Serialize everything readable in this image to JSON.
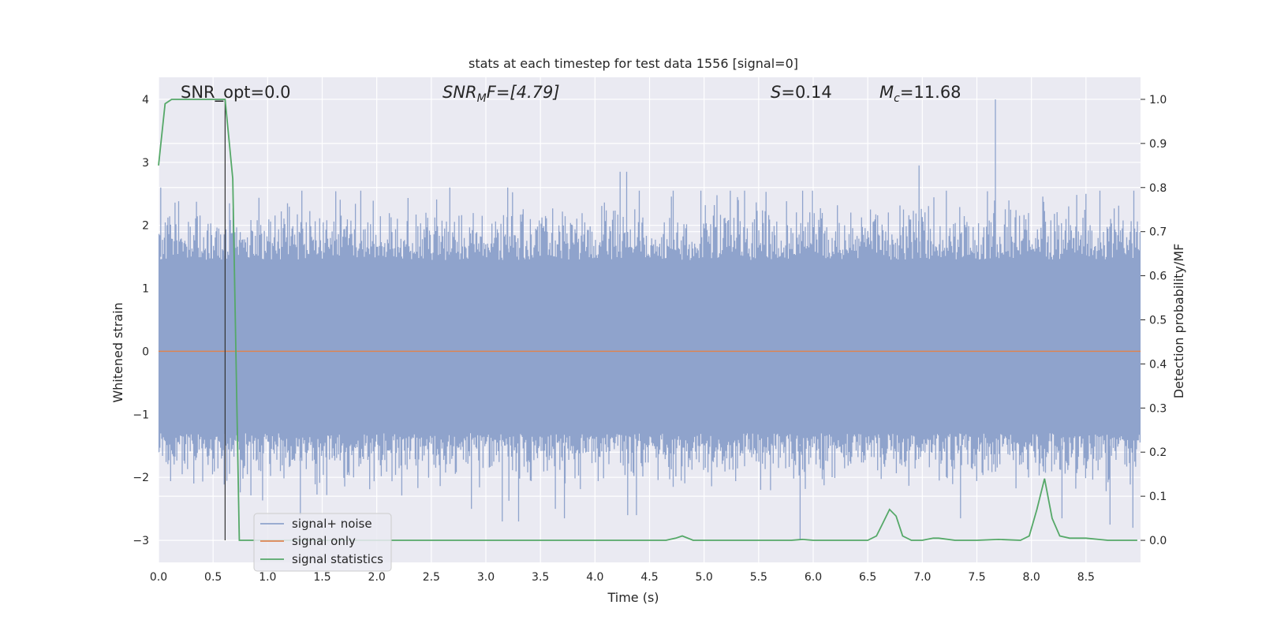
{
  "chart_data": {
    "type": "line",
    "title": "stats at each timestep for test data 1556 [signal=0]",
    "xlabel": "Time (s)",
    "ylabel": "Whitened strain",
    "ylabel_right": "Detection probability/MF",
    "xlim": [
      0.0,
      9.0
    ],
    "ylim": [
      -3.35,
      4.35
    ],
    "ylim_right": [
      -0.05,
      1.05
    ],
    "x_ticks": [
      "0.0",
      "0.5",
      "1.0",
      "1.5",
      "2.0",
      "2.5",
      "3.0",
      "3.5",
      "4.0",
      "4.5",
      "5.0",
      "5.5",
      "6.0",
      "6.5",
      "7.0",
      "7.5",
      "8.0",
      "8.5"
    ],
    "y_ticks": [
      "4",
      "3",
      "2",
      "1",
      "0",
      "−1",
      "−2",
      "−3"
    ],
    "y_ticks_right": [
      "1.0",
      "0.9",
      "0.8",
      "0.7",
      "0.6",
      "0.5",
      "0.4",
      "0.3",
      "0.2",
      "0.1",
      "0.0"
    ],
    "grid": true,
    "legend_position": "lower-left",
    "annotations": {
      "snr_opt": "SNR_opt=0.0",
      "snr_mf_base": "SNR",
      "snr_mf_sub": "M",
      "snr_mf_rest": "F=[4.79]",
      "s_label": "S",
      "s_value": "=0.14",
      "mc_label": "M",
      "mc_sub": "c",
      "mc_value": "=11.68"
    },
    "marker_line_x": 0.61,
    "series": [
      {
        "name": "signal+ noise",
        "color": "#8fa3cc",
        "description_style": "dense noise band",
        "envelope_upper_typical": 1.9,
        "envelope_lower_typical": -1.7,
        "peaks": [
          [
            0.02,
            2.6
          ],
          [
            2.67,
            2.6
          ],
          [
            3.2,
            2.6
          ],
          [
            4.23,
            2.85
          ],
          [
            4.29,
            2.85
          ],
          [
            6.97,
            2.95
          ],
          [
            7.67,
            4.0
          ],
          [
            8.5,
            2.5
          ]
        ],
        "troughs": [
          [
            1.3,
            -2.6
          ],
          [
            3.15,
            -2.7
          ],
          [
            3.3,
            -2.7
          ],
          [
            3.72,
            -2.65
          ],
          [
            4.3,
            -2.6
          ],
          [
            4.38,
            -2.6
          ],
          [
            5.88,
            -3.0
          ],
          [
            7.35,
            -2.65
          ],
          [
            8.28,
            -2.65
          ],
          [
            8.72,
            -2.75
          ],
          [
            8.93,
            -2.8
          ]
        ]
      },
      {
        "name": "signal only",
        "color": "#dd8452",
        "x": [
          0.0,
          9.0
        ],
        "y": [
          0.0,
          0.0
        ]
      },
      {
        "name": "signal statistics",
        "color": "#55a868",
        "axis": "right",
        "x": [
          0.0,
          0.06,
          0.12,
          0.2,
          0.3,
          0.4,
          0.5,
          0.55,
          0.61,
          0.68,
          0.74,
          0.8,
          1.5,
          2.5,
          3.5,
          4.0,
          4.5,
          4.65,
          4.74,
          4.8,
          4.9,
          5.0,
          5.5,
          5.8,
          5.9,
          6.0,
          6.5,
          6.58,
          6.63,
          6.7,
          6.76,
          6.82,
          6.9,
          7.0,
          7.1,
          7.15,
          7.3,
          7.5,
          7.7,
          7.9,
          7.98,
          8.05,
          8.12,
          8.19,
          8.26,
          8.35,
          8.5,
          8.7,
          8.97
        ],
        "y": [
          0.85,
          0.99,
          1.0,
          1.0,
          1.0,
          1.0,
          1.0,
          1.0,
          1.0,
          0.82,
          0.0,
          0.0,
          0.0,
          0.0,
          0.0,
          0.0,
          0.0,
          0.0,
          0.005,
          0.01,
          0.0,
          0.0,
          0.0,
          0.0,
          0.002,
          0.0,
          0.0,
          0.01,
          0.035,
          0.07,
          0.055,
          0.01,
          0.0,
          0.0,
          0.005,
          0.005,
          0.0,
          0.0,
          0.002,
          0.0,
          0.01,
          0.07,
          0.14,
          0.05,
          0.01,
          0.005,
          0.005,
          0.0,
          0.0
        ]
      }
    ]
  }
}
